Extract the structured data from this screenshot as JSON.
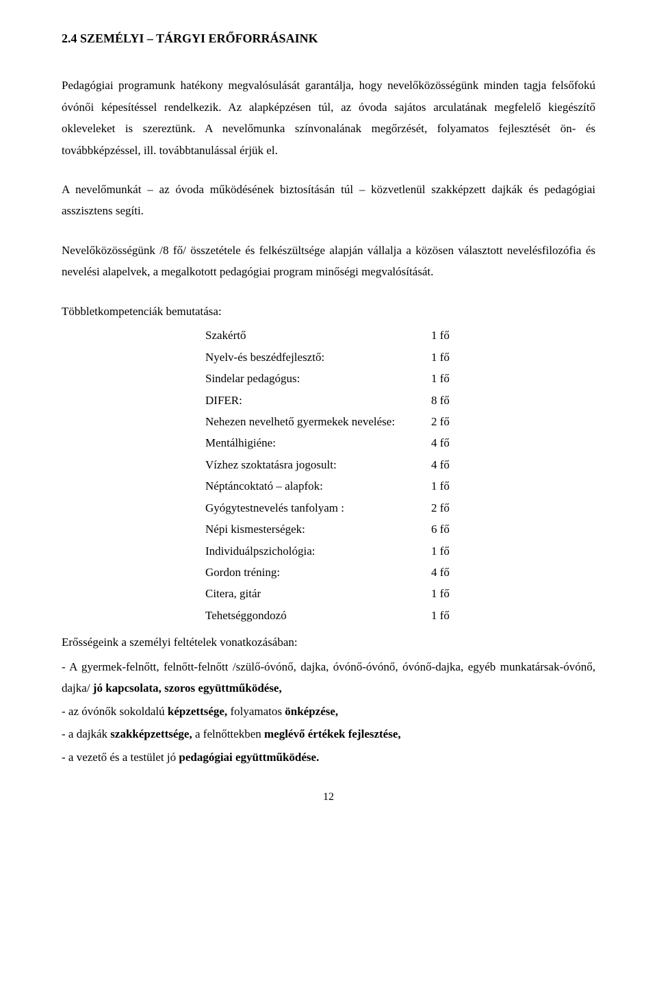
{
  "heading": "2.4  SZEMÉLYI – TÁRGYI ERŐFORRÁSAINK",
  "p1": "Pedagógiai programunk hatékony megvalósulását garantálja, hogy nevelőközösségünk minden tagja felsőfokú óvónői képesítéssel rendelkezik. Az alapképzésen túl, az óvoda sajátos arculatának megfelelő kiegészítő okleveleket is szereztünk. A nevelőmunka színvonalának megőrzését, folyamatos fejlesztését ön- és továbbképzéssel, ill. továbbtanulással érjük el.",
  "p2": "A nevelőmunkát – az óvoda működésének biztosításán túl – közvetlenül szakképzett dajkák és pedagógiai asszisztens segíti.",
  "p3": "Nevelőközösségünk /8 fő/ összetétele és felkészültsége alapján vállalja a közösen választott nevelésfilozófia és nevelési alapelvek, a megalkotott pedagógiai program minőségi megvalósítását.",
  "competencies_title": "Többletkompetenciák bemutatása:",
  "competencies": [
    {
      "label": "Szakértő",
      "value": "1 fő"
    },
    {
      "label": "Nyelv-és beszédfejlesztő:",
      "value": "1 fő"
    },
    {
      "label": "Sindelar pedagógus:",
      "value": "1 fő"
    },
    {
      "label": "DIFER:",
      "value": "8 fő"
    },
    {
      "label": "Nehezen nevelhető gyermekek nevelése:",
      "value": "2 fő"
    },
    {
      "label": "Mentálhigiéne:",
      "value": "4 fő"
    },
    {
      "label": "Vízhez szoktatásra jogosult:",
      "value": "4 fő"
    },
    {
      "label": "Néptáncoktató – alapfok:",
      "value": "1 fő"
    },
    {
      "label": "Gyógytestnevelés tanfolyam  :",
      "value": "2 fő"
    },
    {
      "label": "Népi kismesterségek:",
      "value": "6 fő"
    },
    {
      "label": "Individuálpszichológia:",
      "value": "1 fő"
    },
    {
      "label": "Gordon tréning:",
      "value": "4 fő"
    },
    {
      "label": "Citera, gitár",
      "value": "1 fő"
    },
    {
      "label": "Tehetséggondozó",
      "value": "1 fő"
    }
  ],
  "strengths_title": "Erősségeink a személyi feltételek vonatkozásában:",
  "s1a": "- A gyermek-felnőtt, felnőtt-felnőtt /szülő-óvónő, dajka, óvónő-óvónő, óvónő-dajka, egyéb munkatársak-óvónő, dajka/ ",
  "s1b": "jó kapcsolata, szoros együttműködése,",
  "s2a": "- az óvónők sokoldalú ",
  "s2b": "képzettsége, ",
  "s2c": "folyamatos ",
  "s2d": "önképzése,",
  "s3a": "- a dajkák ",
  "s3b": "szakképzettsége, ",
  "s3c": "a felnőttekben ",
  "s3d": "meglévő értékek fejlesztése,",
  "s4a": "- a vezető és a testület jó ",
  "s4b": "pedagógiai együttműködése.",
  "page_number": "12"
}
